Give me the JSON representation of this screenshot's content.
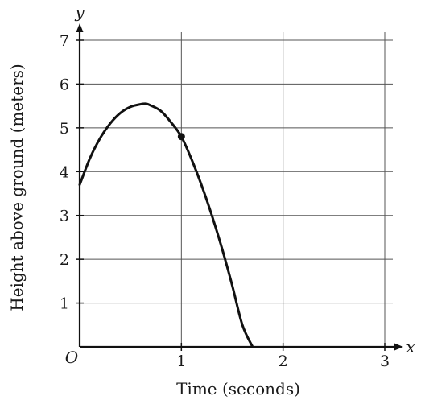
{
  "chart_data": {
    "type": "line",
    "xlabel": "Time (seconds)",
    "ylabel": "Height above ground (meters)",
    "x_axis_letter": "x",
    "y_axis_letter": "y",
    "origin_label": "O",
    "xlim": [
      0,
      3
    ],
    "ylim": [
      0,
      7
    ],
    "x_ticks": [
      1,
      2,
      3
    ],
    "y_ticks": [
      1,
      2,
      3,
      4,
      5,
      6,
      7
    ],
    "grid": true,
    "series": [
      {
        "x": [
          0,
          0.1,
          0.2,
          0.3,
          0.4,
          0.5,
          0.6,
          0.65,
          0.7,
          0.8,
          0.9,
          1.0,
          1.1,
          1.2,
          1.3,
          1.4,
          1.5,
          1.6,
          1.7
        ],
        "y": [
          3.7,
          4.3,
          4.76,
          5.1,
          5.34,
          5.48,
          5.54,
          5.55,
          5.51,
          5.38,
          5.12,
          4.8,
          4.28,
          3.68,
          3.0,
          2.24,
          1.4,
          0.5,
          0
        ]
      }
    ],
    "marked_point": {
      "x": 1,
      "y": 4.8
    },
    "colors": {
      "curve": "#111111",
      "grid": "#555555",
      "axis": "#111111"
    }
  }
}
